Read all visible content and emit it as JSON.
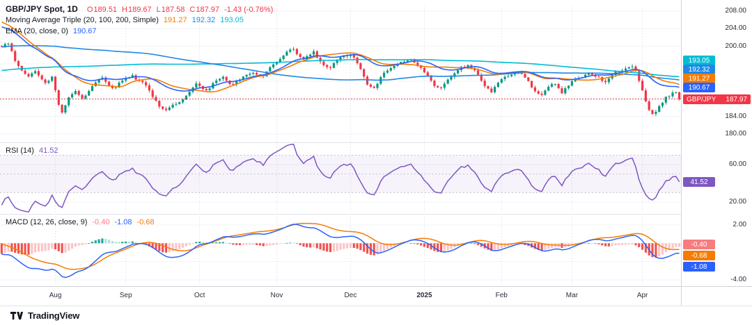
{
  "header": {
    "symbol": "GBP/JPY Spot, 1D",
    "ohlc": {
      "o_label": "O",
      "o": "189.51",
      "h_label": "H",
      "h": "189.67",
      "l_label": "L",
      "l": "187.58",
      "c_label": "C",
      "c": "187.97",
      "change": "-1.43 (-0.76%)"
    },
    "ma_triple": {
      "label": "Moving Average Triple (20, 100, 200, Simple)",
      "v20": "191.27",
      "v100": "192.32",
      "v200": "193.05"
    },
    "ema": {
      "label": "EMA (20, close, 0)",
      "value": "190.67"
    }
  },
  "rsi_legend": {
    "label": "RSI (14)",
    "value": "41.52"
  },
  "macd_legend": {
    "label": "MACD (12, 26, close, 9)",
    "hist": "-0.40",
    "macd": "-1.08",
    "signal": "-0.68"
  },
  "badges": {
    "sma200": "193.05",
    "sma100": "192.32",
    "sma20": "191.27",
    "ema20": "190.67",
    "symbol": "GBP/JPY",
    "price": "187.97",
    "rsi": "41.52",
    "macd_hist": "-0.40",
    "macd_signal": "-0.68",
    "macd_line": "-1.08"
  },
  "branding": {
    "name": "TradingView"
  },
  "chart_data": {
    "type": "candlestick",
    "symbol": "GBP/JPY Spot",
    "interval": "1D",
    "last": {
      "open": 189.51,
      "high": 189.67,
      "low": 187.58,
      "close": 187.97,
      "change": -1.43,
      "change_pct": -0.76
    },
    "price_range": [
      180,
      208
    ],
    "visible_bars": 203,
    "prehistory_bars": 220,
    "close_keyframes": [
      [
        0,
        199.6
      ],
      [
        2,
        200.3
      ],
      [
        4,
        197.0
      ],
      [
        6,
        195.0
      ],
      [
        8,
        193.2
      ],
      [
        10,
        194.3
      ],
      [
        13,
        191.6
      ],
      [
        15,
        192.6
      ],
      [
        17,
        186.4
      ],
      [
        18,
        184.9
      ],
      [
        20,
        188.6
      ],
      [
        22,
        189.8
      ],
      [
        24,
        188.2
      ],
      [
        27,
        191.2
      ],
      [
        30,
        192.7
      ],
      [
        33,
        190.3
      ],
      [
        36,
        191.9
      ],
      [
        39,
        193.5
      ],
      [
        42,
        192.1
      ],
      [
        45,
        188.6
      ],
      [
        47,
        186.3
      ],
      [
        49,
        185.1
      ],
      [
        52,
        186.6
      ],
      [
        55,
        189.2
      ],
      [
        58,
        191.4
      ],
      [
        61,
        190.1
      ],
      [
        63,
        191.6
      ],
      [
        66,
        192.6
      ],
      [
        69,
        191.1
      ],
      [
        72,
        192.9
      ],
      [
        75,
        194.3
      ],
      [
        78,
        193.1
      ],
      [
        81,
        195.9
      ],
      [
        84,
        197.6
      ],
      [
        87,
        199.1
      ],
      [
        90,
        197.2
      ],
      [
        93,
        198.6
      ],
      [
        95,
        196.6
      ],
      [
        98,
        194.9
      ],
      [
        102,
        197.8
      ],
      [
        104,
        198.3
      ],
      [
        107,
        194.8
      ],
      [
        109,
        191.5
      ],
      [
        111,
        190.7
      ],
      [
        114,
        193.5
      ],
      [
        117,
        195.8
      ],
      [
        120,
        196.0
      ],
      [
        122,
        197.0
      ],
      [
        125,
        195.4
      ],
      [
        127,
        193.4
      ],
      [
        129,
        191.2
      ],
      [
        131,
        190.6
      ],
      [
        134,
        192.8
      ],
      [
        137,
        195.3
      ],
      [
        139,
        195.7
      ],
      [
        141,
        194.2
      ],
      [
        144,
        191.5
      ],
      [
        146,
        189.9
      ],
      [
        149,
        192.3
      ],
      [
        152,
        193.6
      ],
      [
        154,
        193.9
      ],
      [
        157,
        191.9
      ],
      [
        159,
        190.4
      ],
      [
        161,
        189.1
      ],
      [
        163,
        190.8
      ],
      [
        165,
        191.5
      ],
      [
        167,
        189.3
      ],
      [
        169,
        190.8
      ],
      [
        172,
        192.9
      ],
      [
        175,
        193.9
      ],
      [
        178,
        193.0
      ],
      [
        180,
        192.0
      ],
      [
        182,
        193.3
      ],
      [
        184,
        194.0
      ],
      [
        186,
        194.9
      ],
      [
        188,
        195.5
      ],
      [
        189,
        194.0
      ],
      [
        190,
        192.0
      ],
      [
        191,
        190.0
      ],
      [
        192,
        187.5
      ],
      [
        193,
        185.8
      ],
      [
        194,
        185.0
      ],
      [
        195,
        185.5
      ],
      [
        196,
        186.2
      ],
      [
        197,
        187.0
      ],
      [
        198,
        188.2
      ],
      [
        199,
        188.8
      ],
      [
        200,
        189.3
      ],
      [
        201,
        189.5
      ],
      [
        202,
        187.97
      ]
    ],
    "prehistory_keyframes": [
      [
        -220,
        182.5
      ],
      [
        -180,
        185.0
      ],
      [
        -140,
        188.5
      ],
      [
        -100,
        192.5
      ],
      [
        -70,
        196.5
      ],
      [
        -45,
        200.5
      ],
      [
        -25,
        206.5
      ],
      [
        -15,
        207.8
      ],
      [
        -10,
        205.5
      ],
      [
        -5,
        202.0
      ],
      [
        -3,
        200.8
      ]
    ],
    "overlays": {
      "sma20": {
        "period": 20,
        "value": 191.27
      },
      "sma100": {
        "period": 100,
        "value": 192.32
      },
      "sma200": {
        "period": 200,
        "value": 193.05
      },
      "ema20": {
        "period": 20,
        "value": 190.67
      }
    },
    "rsi": {
      "period": 14,
      "last": 41.52,
      "upper": 70,
      "mid": 50,
      "lower": 30,
      "ticks": [
        {
          "value": 60,
          "label": "60.00"
        },
        {
          "value": 20,
          "label": "20.00"
        }
      ],
      "grid": [
        60,
        20
      ]
    },
    "macd": {
      "fast": 12,
      "slow": 26,
      "signal": 9,
      "last_macd": -1.08,
      "last_signal": -0.68,
      "last_hist": -0.4,
      "ticks": [
        {
          "value": 2,
          "label": "2.00"
        },
        {
          "value": -4,
          "label": "-4.00"
        }
      ],
      "grid": [
        2,
        0,
        -2,
        -4
      ]
    },
    "price_ticks": [
      {
        "value": 208,
        "label": "208.00"
      },
      {
        "value": 204,
        "label": "204.00"
      },
      {
        "value": 200,
        "label": "200.00"
      },
      {
        "value": 184,
        "label": "184.00"
      },
      {
        "value": 180,
        "label": "180.00"
      }
    ],
    "price_grid": [
      208,
      204,
      200,
      196,
      192,
      188,
      184,
      180
    ],
    "x_ticks": [
      {
        "label": "Aug",
        "bar": 16
      },
      {
        "label": "Sep",
        "bar": 37
      },
      {
        "label": "Oct",
        "bar": 59
      },
      {
        "label": "Nov",
        "bar": 82
      },
      {
        "label": "Dec",
        "bar": 104
      },
      {
        "label": "2025",
        "bar": 126,
        "bold": true
      },
      {
        "label": "Feb",
        "bar": 149
      },
      {
        "label": "Mar",
        "bar": 170
      },
      {
        "label": "Apr",
        "bar": 191
      }
    ],
    "colors": {
      "up": "#089981",
      "down": "#f23645",
      "sma20": "#f57c00",
      "sma100": "#1e88e5",
      "sma200": "#00bcd4",
      "ema20": "#2962ff",
      "rsi": "#7e57c2",
      "macd_line": "#2962ff",
      "macd_signal": "#f57c00",
      "hist_up": "#26a69a",
      "hist_up_weak": "#b2dfdb",
      "hist_down": "#ef5350",
      "hist_down_weak": "#fbc4c7",
      "last_price": "#f23645"
    }
  }
}
